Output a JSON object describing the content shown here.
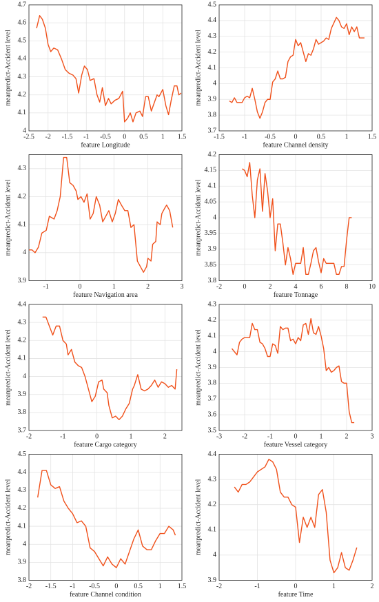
{
  "chart_data": [
    {
      "type": "line",
      "xlabel": "feature Longitude",
      "ylabel": "meanpredict-Accident level",
      "color": "#f0501a",
      "grid": true,
      "xlim": [
        -2.5,
        1.5
      ],
      "xticks": [
        -2.5,
        -2,
        -1.5,
        -1,
        -0.5,
        0,
        0.5,
        1,
        1.5
      ],
      "ylim": [
        4,
        4.7
      ],
      "yticks": [
        4,
        4.1,
        4.2,
        4.3,
        4.4,
        4.5,
        4.6,
        4.7
      ],
      "x": [
        -2.3,
        -2.22,
        -2.15,
        -2.07,
        -2.0,
        -1.93,
        -1.85,
        -1.75,
        -1.65,
        -1.55,
        -1.45,
        -1.35,
        -1.27,
        -1.2,
        -1.12,
        -1.05,
        -0.97,
        -0.9,
        -0.8,
        -0.72,
        -0.65,
        -0.58,
        -0.5,
        -0.42,
        -0.35,
        -0.25,
        -0.15,
        -0.05,
        0.0,
        0.08,
        0.15,
        0.22,
        0.3,
        0.4,
        0.47,
        0.55,
        0.62,
        0.7,
        0.85,
        0.9,
        1.0,
        1.08,
        1.15,
        1.22,
        1.3,
        1.37,
        1.42,
        1.48
      ],
      "values": [
        4.57,
        4.64,
        4.62,
        4.57,
        4.48,
        4.44,
        4.46,
        4.45,
        4.4,
        4.34,
        4.32,
        4.31,
        4.29,
        4.21,
        4.31,
        4.36,
        4.34,
        4.28,
        4.29,
        4.2,
        4.16,
        4.24,
        4.14,
        4.18,
        4.15,
        4.17,
        4.18,
        4.22,
        4.05,
        4.07,
        4.1,
        4.05,
        4.1,
        4.11,
        4.08,
        4.19,
        4.19,
        4.11,
        4.2,
        4.19,
        4.23,
        4.14,
        4.09,
        4.17,
        4.25,
        4.25,
        4.2,
        4.21
      ]
    },
    {
      "type": "line",
      "xlabel": "feature Channel density",
      "ylabel": "meanpredict-Accident level",
      "color": "#f0501a",
      "grid": true,
      "xlim": [
        -1.5,
        1.5
      ],
      "xticks": [
        -1.5,
        -1,
        -0.5,
        0,
        0.5,
        1,
        1.5
      ],
      "ylim": [
        3.7,
        4.5
      ],
      "yticks": [
        3.7,
        3.8,
        3.9,
        4,
        4.1,
        4.2,
        4.3,
        4.4,
        4.5
      ],
      "x": [
        -1.3,
        -1.25,
        -1.2,
        -1.15,
        -1.05,
        -1.0,
        -0.95,
        -0.9,
        -0.85,
        -0.8,
        -0.75,
        -0.7,
        -0.65,
        -0.6,
        -0.55,
        -0.5,
        -0.45,
        -0.4,
        -0.35,
        -0.3,
        -0.25,
        -0.2,
        -0.15,
        -0.1,
        -0.05,
        0.0,
        0.05,
        0.1,
        0.2,
        0.25,
        0.3,
        0.35,
        0.4,
        0.45,
        0.55,
        0.6,
        0.65,
        0.7,
        0.8,
        0.85,
        0.9,
        0.95,
        1.0,
        1.05,
        1.1,
        1.15,
        1.2,
        1.25,
        1.35
      ],
      "values": [
        3.89,
        3.88,
        3.91,
        3.88,
        3.88,
        3.91,
        3.92,
        3.91,
        3.97,
        3.9,
        3.82,
        3.78,
        3.82,
        3.88,
        3.9,
        3.9,
        4.01,
        4.03,
        4.08,
        4.03,
        4.03,
        4.04,
        4.14,
        4.17,
        4.18,
        4.28,
        4.24,
        4.26,
        4.14,
        4.19,
        4.18,
        4.22,
        4.28,
        4.25,
        4.27,
        4.29,
        4.28,
        4.35,
        4.42,
        4.4,
        4.36,
        4.35,
        4.38,
        4.31,
        4.36,
        4.33,
        4.36,
        4.29,
        4.29
      ]
    },
    {
      "type": "line",
      "xlabel": "feature Navigation area",
      "ylabel": "meanpredict-Accident level",
      "color": "#f0501a",
      "grid": true,
      "xlim": [
        -1.5,
        3
      ],
      "xticks": [
        -1,
        0,
        1,
        2,
        3
      ],
      "ylim": [
        3.9,
        4.35
      ],
      "yticks": [
        3.9,
        4,
        4.1,
        4.2,
        4.3
      ],
      "x": [
        -1.5,
        -1.41,
        -1.32,
        -1.22,
        -1.12,
        -0.99,
        -0.9,
        -0.76,
        -0.67,
        -0.58,
        -0.48,
        -0.39,
        -0.3,
        -0.2,
        -0.11,
        -0.06,
        0.03,
        0.12,
        0.21,
        0.3,
        0.39,
        0.48,
        0.58,
        0.67,
        0.76,
        0.85,
        0.95,
        1.04,
        1.13,
        1.22,
        1.32,
        1.41,
        1.5,
        1.59,
        1.69,
        1.78,
        1.87,
        1.96,
        2.0,
        2.09,
        2.14,
        2.23,
        2.27,
        2.36,
        2.41,
        2.5,
        2.55,
        2.64,
        2.73
      ],
      "values": [
        4.01,
        4.01,
        4.0,
        4.02,
        4.07,
        4.08,
        4.13,
        4.12,
        4.15,
        4.2,
        4.34,
        4.34,
        4.25,
        4.24,
        4.22,
        4.19,
        4.2,
        4.18,
        4.21,
        4.12,
        4.14,
        4.2,
        4.17,
        4.11,
        4.13,
        4.15,
        4.11,
        4.14,
        4.19,
        4.17,
        4.15,
        4.15,
        4.09,
        4.1,
        3.97,
        3.95,
        3.93,
        3.95,
        3.98,
        3.97,
        4.03,
        4.04,
        4.11,
        4.1,
        4.14,
        4.16,
        4.17,
        4.15,
        4.09
      ]
    },
    {
      "type": "line",
      "xlabel": "feature Tonnage",
      "ylabel": "meanpredict-Accident level",
      "color": "#f0501a",
      "grid": true,
      "xlim": [
        -2,
        10
      ],
      "xticks": [
        -2,
        0,
        2,
        4,
        6,
        8,
        10
      ],
      "ylim": [
        3.8,
        4.2
      ],
      "yticks": [
        3.8,
        3.85,
        3.9,
        3.95,
        4,
        4.05,
        4.1,
        4.15,
        4.2
      ],
      "x": [
        -0.2,
        0,
        0.2,
        0.4,
        0.6,
        0.8,
        1.0,
        1.2,
        1.4,
        1.6,
        1.8,
        2.0,
        2.2,
        2.4,
        2.6,
        2.8,
        3.0,
        3.2,
        3.4,
        3.6,
        3.8,
        4.0,
        4.2,
        4.4,
        4.6,
        4.8,
        5.0,
        5.2,
        5.4,
        5.6,
        5.8,
        6.0,
        6.2,
        6.4,
        6.6,
        6.8,
        7.0,
        7.2,
        7.4,
        7.6,
        7.8,
        8.0,
        8.2,
        8.4
      ],
      "values": [
        4.155,
        4.15,
        4.13,
        4.175,
        4.07,
        4.0,
        4.12,
        4.155,
        4.02,
        4.14,
        4.085,
        4.0,
        4.06,
        3.895,
        3.98,
        3.98,
        3.92,
        3.85,
        3.905,
        3.87,
        3.82,
        3.855,
        3.855,
        3.855,
        3.905,
        3.82,
        3.82,
        3.855,
        3.895,
        3.905,
        3.86,
        3.825,
        3.87,
        3.855,
        3.855,
        3.855,
        3.855,
        3.82,
        3.82,
        3.845,
        3.845,
        3.93,
        4.0,
        4.0
      ]
    },
    {
      "type": "line",
      "xlabel": "feature Cargo category",
      "ylabel": "meanpredict-Accident level",
      "color": "#f0501a",
      "grid": true,
      "xlim": [
        -2,
        2.5
      ],
      "xticks": [
        -2,
        -1,
        0,
        1,
        2
      ],
      "ylim": [
        3.7,
        4.4
      ],
      "yticks": [
        3.7,
        3.8,
        3.9,
        4,
        4.1,
        4.2,
        4.3,
        4.4
      ],
      "x": [
        -1.6,
        -1.5,
        -1.4,
        -1.3,
        -1.2,
        -1.1,
        -1.0,
        -0.9,
        -0.85,
        -0.75,
        -0.65,
        -0.55,
        -0.45,
        -0.35,
        -0.25,
        -0.15,
        -0.05,
        0.05,
        0.15,
        0.2,
        0.3,
        0.35,
        0.45,
        0.55,
        0.65,
        0.75,
        0.85,
        0.95,
        1.05,
        1.1,
        1.2,
        1.3,
        1.4,
        1.5,
        1.6,
        1.7,
        1.8,
        1.9,
        2.0,
        2.1,
        2.2,
        2.3,
        2.35
      ],
      "values": [
        4.33,
        4.33,
        4.28,
        4.23,
        4.28,
        4.28,
        4.2,
        4.18,
        4.12,
        4.15,
        4.08,
        4.06,
        4.05,
        4.0,
        3.93,
        3.86,
        3.89,
        3.97,
        3.98,
        3.93,
        3.91,
        3.84,
        3.77,
        3.78,
        3.76,
        3.78,
        3.82,
        3.85,
        3.93,
        3.95,
        4.01,
        3.93,
        3.92,
        3.93,
        3.95,
        3.98,
        3.94,
        3.97,
        3.96,
        3.94,
        3.95,
        3.93,
        4.04
      ]
    },
    {
      "type": "line",
      "xlabel": "feature Vessel category",
      "ylabel": "meanpredict-Accident level",
      "color": "#f0501a",
      "grid": true,
      "xlim": [
        -3,
        3
      ],
      "xticks": [
        -3,
        -2,
        -1,
        0,
        1,
        2,
        3
      ],
      "ylim": [
        3.5,
        4.3
      ],
      "yticks": [
        3.5,
        3.6,
        3.7,
        3.8,
        3.9,
        4,
        4.1,
        4.2,
        4.3
      ],
      "x": [
        -2.5,
        -2.4,
        -2.3,
        -2.2,
        -2.1,
        -2.0,
        -1.9,
        -1.8,
        -1.7,
        -1.6,
        -1.5,
        -1.4,
        -1.3,
        -1.2,
        -1.1,
        -1.0,
        -0.9,
        -0.8,
        -0.7,
        -0.6,
        -0.5,
        -0.4,
        -0.3,
        -0.2,
        -0.1,
        0.0,
        0.1,
        0.2,
        0.3,
        0.4,
        0.5,
        0.6,
        0.7,
        0.8,
        0.9,
        1.0,
        1.1,
        1.2,
        1.3,
        1.4,
        1.5,
        1.6,
        1.7,
        1.8,
        1.9,
        2.0,
        2.1,
        2.2,
        2.3
      ],
      "values": [
        4.02,
        4.0,
        3.98,
        4.06,
        4.08,
        4.09,
        4.09,
        4.09,
        4.18,
        4.14,
        4.14,
        4.06,
        4.05,
        4.02,
        3.97,
        3.97,
        4.05,
        4.04,
        3.99,
        4.16,
        4.14,
        4.15,
        4.15,
        4.07,
        4.08,
        4.05,
        4.09,
        4.07,
        4.17,
        4.18,
        4.11,
        4.21,
        4.12,
        4.11,
        4.16,
        4.1,
        4.02,
        3.88,
        3.9,
        3.87,
        3.88,
        3.9,
        3.91,
        3.81,
        3.8,
        3.8,
        3.62,
        3.55,
        3.55
      ]
    },
    {
      "type": "line",
      "xlabel": "feature Channel condition",
      "ylabel": "meanpredict-Accident level",
      "color": "#f0501a",
      "grid": true,
      "xlim": [
        -2,
        1.5
      ],
      "xticks": [
        -2,
        -1.5,
        -1,
        -0.5,
        0,
        0.5,
        1,
        1.5
      ],
      "ylim": [
        3.8,
        4.5
      ],
      "yticks": [
        3.8,
        3.9,
        4,
        4.1,
        4.2,
        4.3,
        4.4,
        4.5
      ],
      "x": [
        -1.8,
        -1.7,
        -1.6,
        -1.5,
        -1.4,
        -1.3,
        -1.2,
        -1.1,
        -1.0,
        -0.9,
        -0.8,
        -0.7,
        -0.6,
        -0.5,
        -0.4,
        -0.3,
        -0.2,
        -0.1,
        0.0,
        0.1,
        0.2,
        0.3,
        0.4,
        0.5,
        0.6,
        0.7,
        0.8,
        0.9,
        1.0,
        1.1,
        1.2,
        1.3,
        1.35
      ],
      "values": [
        4.26,
        4.41,
        4.41,
        4.33,
        4.31,
        4.32,
        4.24,
        4.2,
        4.17,
        4.12,
        4.13,
        4.1,
        3.98,
        3.96,
        3.92,
        3.88,
        3.93,
        3.89,
        3.87,
        3.92,
        3.89,
        3.96,
        4.03,
        4.08,
        3.99,
        3.97,
        3.97,
        4.02,
        4.06,
        4.06,
        4.1,
        4.08,
        4.05
      ]
    },
    {
      "type": "line",
      "xlabel": "feature Time",
      "ylabel": "meanpredict-Accident level",
      "color": "#f0501a",
      "grid": true,
      "xlim": [
        -2,
        2
      ],
      "xticks": [
        -2,
        -1,
        0,
        1,
        2
      ],
      "ylim": [
        3.9,
        4.4
      ],
      "yticks": [
        3.9,
        4,
        4.1,
        4.2,
        4.3,
        4.4
      ],
      "x": [
        -1.6,
        -1.5,
        -1.4,
        -1.3,
        -1.2,
        -1.1,
        -1.0,
        -0.9,
        -0.8,
        -0.7,
        -0.6,
        -0.5,
        -0.4,
        -0.3,
        -0.2,
        -0.1,
        0.0,
        0.1,
        0.2,
        0.3,
        0.4,
        0.5,
        0.6,
        0.7,
        0.8,
        0.9,
        1.0,
        1.1,
        1.2,
        1.3,
        1.4,
        1.5,
        1.6
      ],
      "values": [
        4.27,
        4.25,
        4.28,
        4.28,
        4.29,
        4.31,
        4.33,
        4.34,
        4.35,
        4.38,
        4.37,
        4.34,
        4.25,
        4.23,
        4.23,
        4.2,
        4.19,
        4.05,
        4.15,
        4.11,
        4.15,
        4.11,
        4.24,
        4.26,
        4.17,
        3.98,
        3.93,
        3.95,
        4.01,
        3.95,
        3.94,
        3.98,
        4.03
      ]
    }
  ]
}
